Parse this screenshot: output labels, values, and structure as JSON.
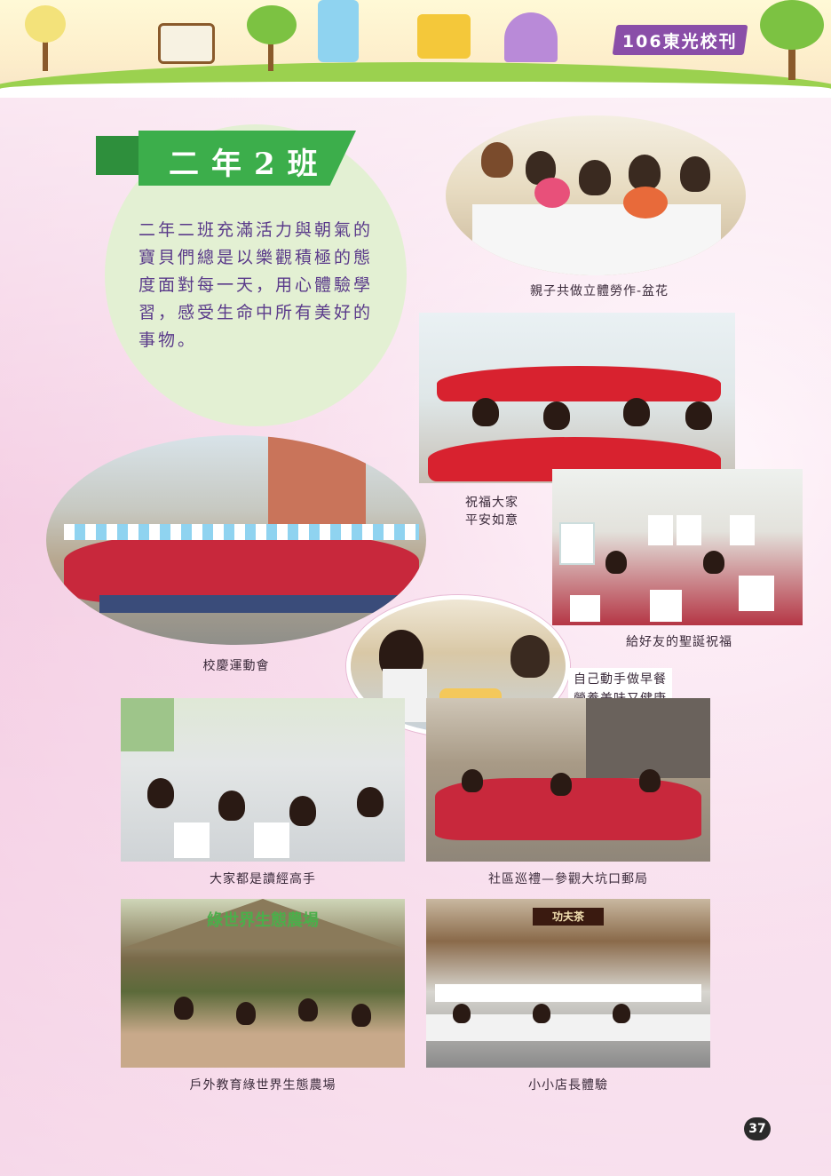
{
  "header": {
    "journal_title": "106東光校刊"
  },
  "intro": {
    "class_title": "二年2班",
    "text": "二年二班充滿活力與朝氣的寶貝們總是以樂觀積極的態度面對每一天，用心體驗學習，感受生命中所有美好的事物。"
  },
  "photos": [
    {
      "caption": "親子共做立體勞作-盆花"
    },
    {
      "caption_line1": "祝福大家",
      "caption_line2": "平安如意"
    },
    {
      "caption": "給好友的聖誕祝福"
    },
    {
      "caption": "校慶運動會"
    },
    {
      "caption_line1": "自己動手做早餐",
      "caption_line2": "營養美味又健康"
    },
    {
      "caption": "大家都是讀經高手"
    },
    {
      "caption": "社區巡禮—參觀大坑口郵局"
    },
    {
      "caption": "戶外教育綠世界生態農場"
    },
    {
      "caption": "小小店長體驗"
    }
  ],
  "farm_sign": "綠世界生態農場",
  "shop_sign": "功夫茶",
  "page_number": "37",
  "colors": {
    "title_green": "#3cae4b",
    "text_purple": "#5a3a8a",
    "tag_purple": "#8a4ea8",
    "uniform_red": "#c8283c"
  }
}
